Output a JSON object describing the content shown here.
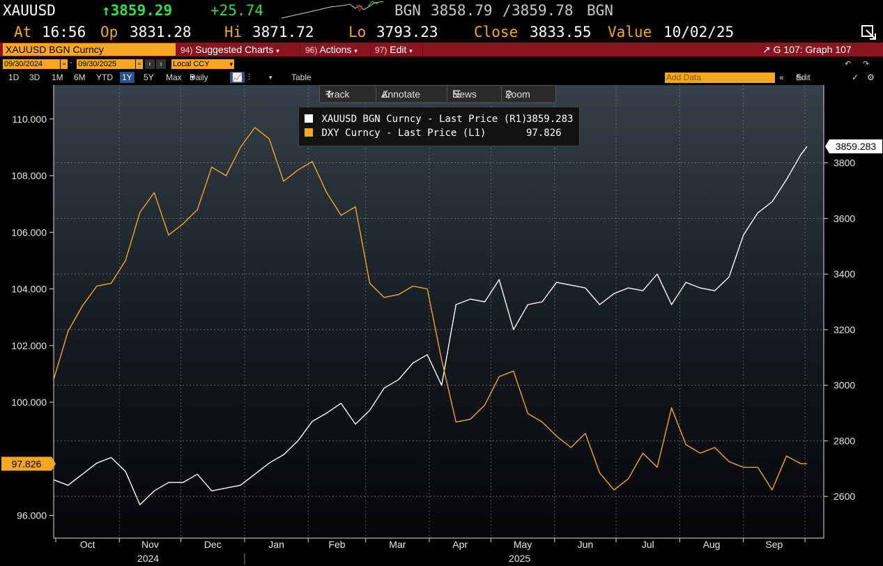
{
  "quote": {
    "ticker": "XAUUSD",
    "last": "↑3859.29",
    "change": "+25.74",
    "bid_ask_prefix": "BGN",
    "bid": "3858.79",
    "ask": "3859.78",
    "bid_ask_suffix": "BGN",
    "at_label": "At",
    "at_time": "16:56",
    "open_label": "Op",
    "open": "3831.28",
    "high_label": "Hi",
    "high": "3871.72",
    "low_label": "Lo",
    "low": "3793.23",
    "close_label": "Close",
    "close": "3833.55",
    "value_label": "Value",
    "value_date": "10/02/25",
    "colors": {
      "up": "#3ddc4b",
      "label": "#f5a623",
      "value": "#ffffff"
    }
  },
  "toolbar": {
    "security": "XAUUSD BGN Curncy",
    "suggested_num": "94)",
    "suggested": "Suggested Charts",
    "actions_num": "96)",
    "actions": "Actions",
    "edit_num": "97)",
    "edit": "Edit",
    "graph": "G 107: Graph 107",
    "bar_color": "#8a1420"
  },
  "dates": {
    "start": "09/30/2024",
    "end": "09/30/2025",
    "currency": "Local CCY"
  },
  "periods": {
    "items": [
      "1D",
      "3D",
      "1M",
      "6M",
      "YTD",
      "1Y",
      "5Y",
      "Max"
    ],
    "active": "1Y",
    "frequency": "Daily",
    "table_label": "Table",
    "add_data_placeholder": "Add Data",
    "edit_chart": "Edit Chart"
  },
  "chart_tools": {
    "track": "Track",
    "annotate": "Annotate",
    "news": "News",
    "zoom": "Zoom"
  },
  "legend": {
    "entries": [
      {
        "label": "XAUUSD BGN Curncy - Last Price (R1)",
        "value": "3859.283",
        "color": "#ffffff"
      },
      {
        "label": "DXY Curncy - Last Price (L1)",
        "value": "97.826",
        "color": "#f5a623"
      }
    ]
  },
  "chart_data": {
    "type": "line",
    "x_axis": {
      "months": [
        "Oct",
        "Nov",
        "Dec",
        "Jan",
        "Feb",
        "Mar",
        "Apr",
        "May",
        "Jun",
        "Jul",
        "Aug",
        "Sep"
      ],
      "years": [
        "2024",
        "2025"
      ],
      "range": [
        "2024-09-30",
        "2025-10-02"
      ]
    },
    "left_axis": {
      "ticks": [
        "110.000",
        "108.000",
        "106.000",
        "104.000",
        "102.000",
        "100.000",
        "96.000"
      ],
      "ylim": [
        95.2,
        111.2
      ],
      "current_label": "97.826"
    },
    "right_axis": {
      "ticks": [
        "3800",
        "3600",
        "3400",
        "3200",
        "3000",
        "2800",
        "2600"
      ],
      "ylim": [
        2450,
        4080
      ],
      "current_label": "3859.283"
    },
    "grid": true,
    "legend_position": "top-center",
    "series": [
      {
        "name": "XAUUSD BGN Curncy - Last Price (R1)",
        "axis": "right",
        "color": "#ffffff",
        "x": [
          "2024-09-30",
          "2024-10-07",
          "2024-10-14",
          "2024-10-21",
          "2024-10-28",
          "2024-11-04",
          "2024-11-11",
          "2024-11-18",
          "2024-11-25",
          "2024-12-02",
          "2024-12-09",
          "2024-12-16",
          "2024-12-23",
          "2024-12-30",
          "2025-01-06",
          "2025-01-13",
          "2025-01-20",
          "2025-01-27",
          "2025-02-03",
          "2025-02-10",
          "2025-02-17",
          "2025-02-24",
          "2025-03-03",
          "2025-03-10",
          "2025-03-17",
          "2025-03-24",
          "2025-03-31",
          "2025-04-07",
          "2025-04-14",
          "2025-04-21",
          "2025-04-28",
          "2025-05-05",
          "2025-05-12",
          "2025-05-19",
          "2025-05-26",
          "2025-06-02",
          "2025-06-09",
          "2025-06-16",
          "2025-06-23",
          "2025-06-30",
          "2025-07-07",
          "2025-07-14",
          "2025-07-21",
          "2025-07-28",
          "2025-08-04",
          "2025-08-11",
          "2025-08-18",
          "2025-08-25",
          "2025-09-01",
          "2025-09-08",
          "2025-09-15",
          "2025-09-22",
          "2025-09-29",
          "2025-10-02"
        ],
        "y": [
          2660,
          2640,
          2680,
          2720,
          2740,
          2690,
          2570,
          2620,
          2650,
          2650,
          2680,
          2620,
          2630,
          2640,
          2680,
          2720,
          2750,
          2800,
          2870,
          2900,
          2935,
          2860,
          2910,
          2990,
          3020,
          3080,
          3110,
          3000,
          3290,
          3310,
          3300,
          3380,
          3200,
          3290,
          3300,
          3370,
          3360,
          3350,
          3290,
          3330,
          3350,
          3340,
          3400,
          3290,
          3370,
          3350,
          3340,
          3390,
          3540,
          3620,
          3660,
          3740,
          3830,
          3859
        ]
      },
      {
        "name": "DXY Curncy - Last Price (L1)",
        "axis": "left",
        "color": "#f5a623",
        "x": [
          "2024-09-30",
          "2024-10-07",
          "2024-10-14",
          "2024-10-21",
          "2024-10-28",
          "2024-11-04",
          "2024-11-11",
          "2024-11-18",
          "2024-11-25",
          "2024-12-02",
          "2024-12-09",
          "2024-12-16",
          "2024-12-23",
          "2024-12-30",
          "2025-01-06",
          "2025-01-13",
          "2025-01-20",
          "2025-01-27",
          "2025-02-03",
          "2025-02-10",
          "2025-02-17",
          "2025-02-24",
          "2025-03-03",
          "2025-03-10",
          "2025-03-17",
          "2025-03-24",
          "2025-03-31",
          "2025-04-07",
          "2025-04-14",
          "2025-04-21",
          "2025-04-28",
          "2025-05-05",
          "2025-05-12",
          "2025-05-19",
          "2025-05-26",
          "2025-06-02",
          "2025-06-09",
          "2025-06-16",
          "2025-06-23",
          "2025-06-30",
          "2025-07-07",
          "2025-07-14",
          "2025-07-21",
          "2025-07-28",
          "2025-08-04",
          "2025-08-11",
          "2025-08-18",
          "2025-08-25",
          "2025-09-01",
          "2025-09-08",
          "2025-09-15",
          "2025-09-22",
          "2025-09-29",
          "2025-10-02"
        ],
        "y": [
          100.8,
          102.5,
          103.4,
          104.1,
          104.2,
          105.0,
          106.7,
          107.4,
          105.9,
          106.3,
          106.8,
          108.3,
          108.0,
          109.0,
          109.7,
          109.3,
          107.8,
          108.2,
          108.5,
          107.4,
          106.6,
          106.9,
          104.2,
          103.7,
          103.8,
          104.1,
          104.0,
          101.5,
          99.3,
          99.4,
          99.9,
          100.9,
          101.1,
          99.6,
          99.3,
          98.8,
          98.4,
          98.9,
          97.5,
          96.9,
          97.3,
          98.2,
          97.7,
          99.8,
          98.5,
          98.2,
          98.4,
          97.9,
          97.7,
          97.7,
          96.9,
          98.1,
          97.826,
          97.826
        ]
      }
    ]
  }
}
